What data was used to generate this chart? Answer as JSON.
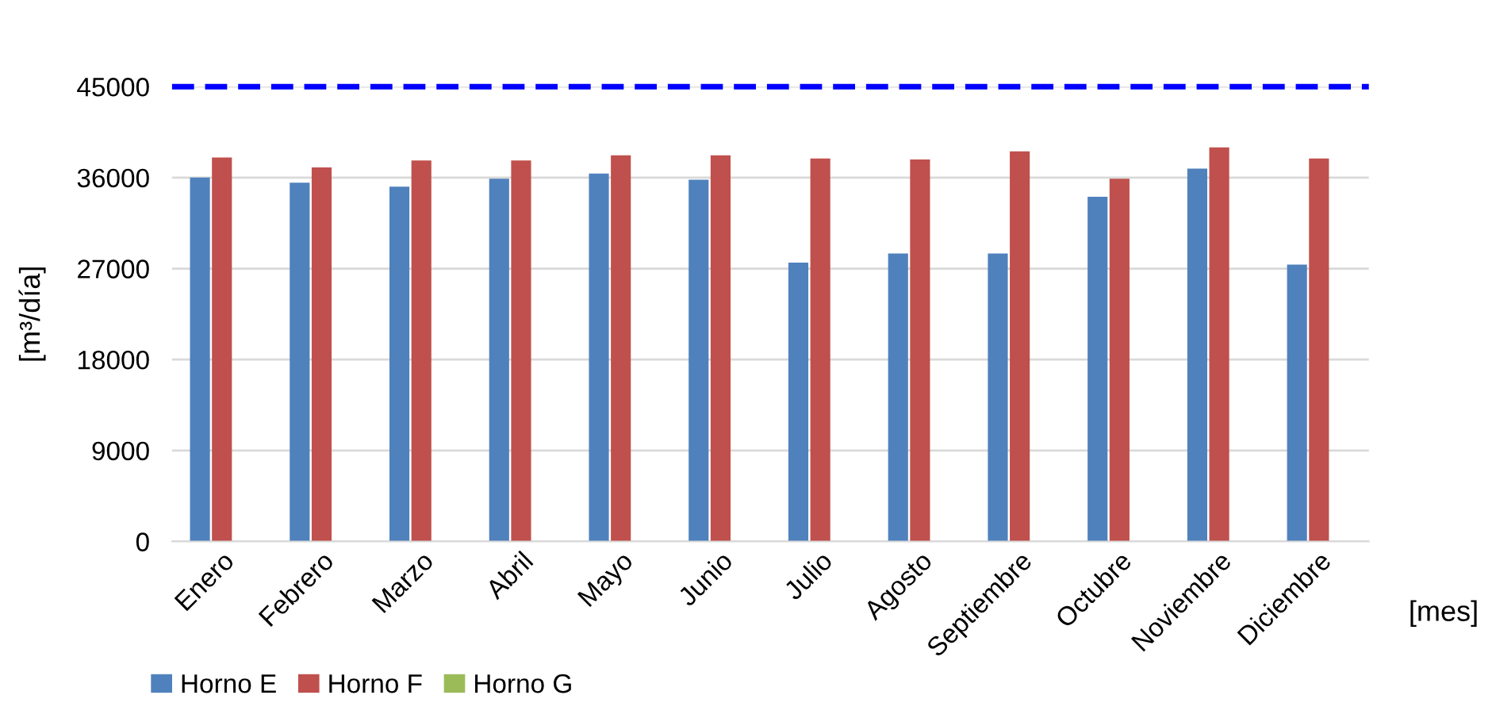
{
  "chart_data": {
    "type": "bar",
    "categories": [
      "Enero",
      "Febrero",
      "Marzo",
      "Abril",
      "Mayo",
      "Junio",
      "Julio",
      "Agosto",
      "Septiembre",
      "Octubre",
      "Noviembre",
      "Diciembre"
    ],
    "series": [
      {
        "name": "Horno E",
        "color": "#4f81bd",
        "values": [
          36000,
          35500,
          35100,
          35900,
          36400,
          35800,
          27600,
          28500,
          28500,
          34100,
          36900,
          27400
        ]
      },
      {
        "name": "Horno F",
        "color": "#c0504d",
        "values": [
          38000,
          37000,
          37700,
          37700,
          38200,
          38200,
          37900,
          37800,
          38600,
          35900,
          39000,
          37900
        ]
      },
      {
        "name": "Horno G",
        "color": "#9bbb59",
        "values": [
          0,
          0,
          0,
          0,
          0,
          0,
          0,
          0,
          0,
          0,
          0,
          0
        ]
      }
    ],
    "ylim": [
      0,
      45000
    ],
    "yticks": [
      0,
      9000,
      18000,
      27000,
      36000,
      45000
    ],
    "grid": "y",
    "legend": "bottom left",
    "xlabel": "[mes]",
    "ylabel": "[m³/día]",
    "ref_lines": [
      {
        "axis": "y",
        "value": 45000,
        "color": "#0000ff",
        "line_style": "dashed"
      }
    ]
  }
}
